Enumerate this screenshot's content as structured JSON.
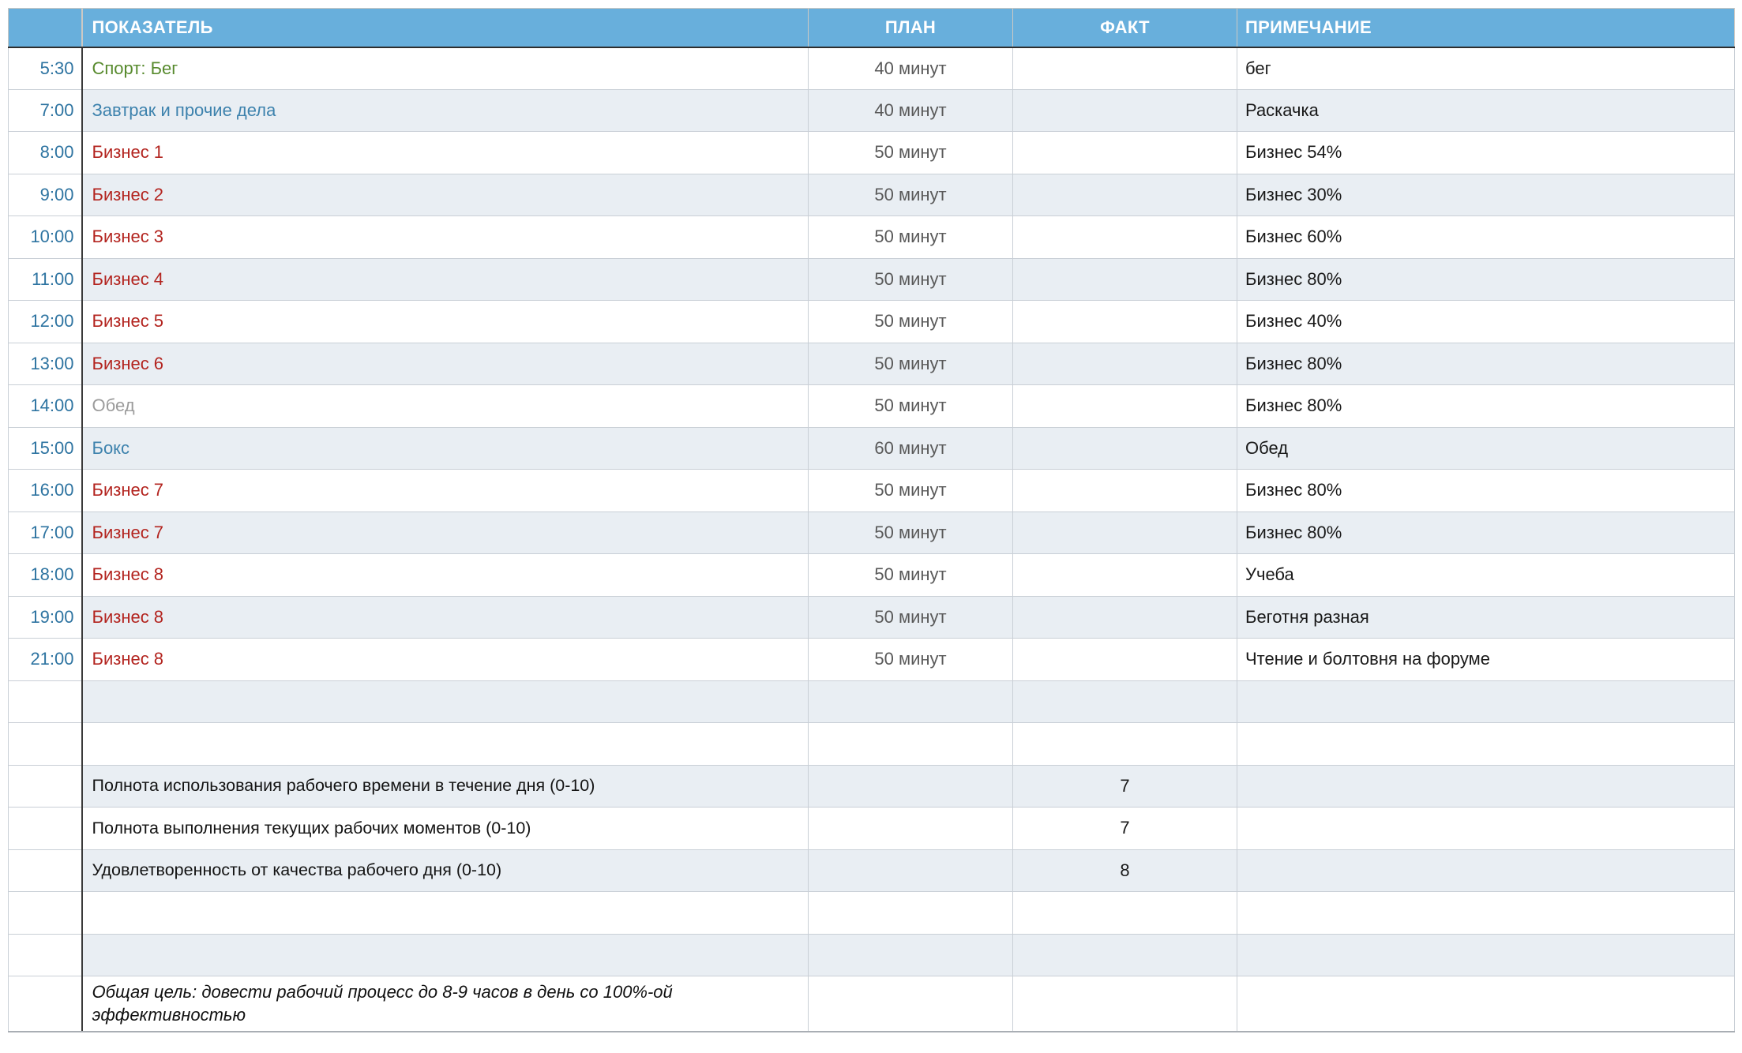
{
  "table": {
    "headers": {
      "indicator": "ПОКАЗАТЕЛЬ",
      "plan": "ПЛАН",
      "fact": "ФАКТ",
      "note": "ПРИМЕЧАНИЕ"
    },
    "schedule": [
      {
        "time": "5:30",
        "activity": "Спорт: Бег",
        "color": "green",
        "plan": "40 минут",
        "note": "бег"
      },
      {
        "time": "7:00",
        "activity": "Завтрак и прочие дела",
        "color": "blue",
        "plan": "40 минут",
        "note": "Раскачка"
      },
      {
        "time": "8:00",
        "activity": "Бизнес 1",
        "color": "red",
        "plan": "50 минут",
        "note": "Бизнес 54%"
      },
      {
        "time": "9:00",
        "activity": "Бизнес 2",
        "color": "red",
        "plan": "50 минут",
        "note": "Бизнес 30%"
      },
      {
        "time": "10:00",
        "activity": "Бизнес 3",
        "color": "red",
        "plan": "50 минут",
        "note": "Бизнес 60%"
      },
      {
        "time": "11:00",
        "activity": "Бизнес 4",
        "color": "red",
        "plan": "50 минут",
        "note": "Бизнес 80%"
      },
      {
        "time": "12:00",
        "activity": "Бизнес 5",
        "color": "red",
        "plan": "50 минут",
        "note": "Бизнес 40%"
      },
      {
        "time": "13:00",
        "activity": "Бизнес 6",
        "color": "red",
        "plan": "50 минут",
        "note": "Бизнес 80%"
      },
      {
        "time": "14:00",
        "activity": "Обед",
        "color": "gray",
        "plan": "50 минут",
        "note": "Бизнес 80%"
      },
      {
        "time": "15:00",
        "activity": "Бокс",
        "color": "blue",
        "plan": "60 минут",
        "note": "Обед"
      },
      {
        "time": "16:00",
        "activity": "Бизнес 7",
        "color": "red",
        "plan": "50 минут",
        "note": "Бизнес 80%"
      },
      {
        "time": "17:00",
        "activity": "Бизнес 7",
        "color": "red",
        "plan": "50 минут",
        "note": "Бизнес 80%"
      },
      {
        "time": "18:00",
        "activity": "Бизнес 8",
        "color": "red",
        "plan": "50 минут",
        "note": "Учеба"
      },
      {
        "time": "19:00",
        "activity": "Бизнес 8",
        "color": "red",
        "plan": "50 минут",
        "note": "Беготня разная"
      },
      {
        "time": "21:00",
        "activity": "Бизнес 8",
        "color": "red",
        "plan": "50 минут",
        "note": "Чтение и болтовня на форуме"
      }
    ],
    "ratings": [
      {
        "label": "Полнота использования рабочего времени в течение дня (0-10)",
        "fact": "7"
      },
      {
        "label": "Полнота выполнения текущих рабочих моментов (0-10)",
        "fact": "7"
      },
      {
        "label": "Удовлетворенность от качества рабочего дня (0-10)",
        "fact": "8"
      }
    ],
    "goal": "Общая цель: довести рабочий процесс до 8-9 часов в день со 100%-ой эффективностью"
  },
  "colors": {
    "header_bg": "#68afdc",
    "header_text": "#ffffff",
    "row_stripe": "#e9eef3",
    "time_text": "#2e74a1",
    "sport_green": "#578a2d",
    "routine_blue": "#3d82ad",
    "business_red": "#b3241f",
    "lunch_gray": "#9b9b9b",
    "plan_text": "#595959",
    "note_text": "#191919"
  }
}
